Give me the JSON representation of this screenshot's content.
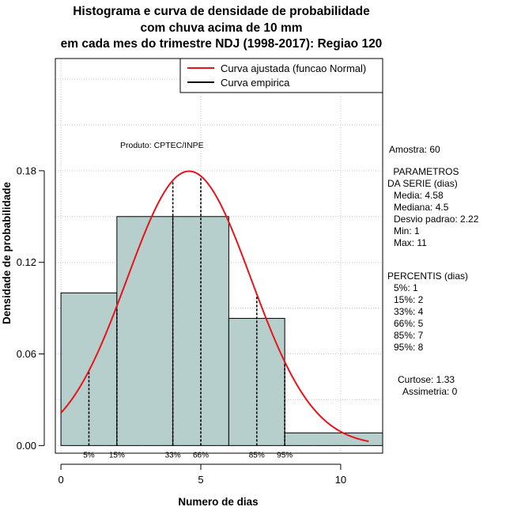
{
  "chart_data": {
    "type": "bar",
    "title_lines": [
      "Histograma e curva de densidade de probabilidade",
      "com chuva acima de 10 mm",
      "em cada mes do trimestre NDJ (1998-2017): Regiao 120"
    ],
    "xlabel": "Numero de dias",
    "ylabel": "Densidade de probabilidade",
    "xlim": [
      -0.2,
      11.5
    ],
    "ylim": [
      -0.005,
      0.2535
    ],
    "x_ticks": [
      0,
      5,
      10
    ],
    "y_ticks": [
      0.0,
      0.06,
      0.12,
      0.18
    ],
    "y_tick_labels": [
      "0.00",
      "0.06",
      "0.12",
      "0.18"
    ],
    "grid": true,
    "histogram": {
      "bin_edges": [
        0,
        2,
        4,
        6,
        8,
        11.5
      ],
      "density": [
        0.1,
        0.15,
        0.15,
        0.0833,
        0.0083
      ],
      "color": "#b6cecc"
    },
    "normal_curve": {
      "mean": 4.58,
      "sd": 2.22,
      "x_range": [
        0,
        11
      ],
      "color": "#e8141b"
    },
    "percentile_lines": [
      {
        "label": "5%",
        "x": 1
      },
      {
        "label": "15%",
        "x": 2
      },
      {
        "label": "33%",
        "x": 4
      },
      {
        "label": "66%",
        "x": 5
      },
      {
        "label": "85%",
        "x": 7
      },
      {
        "label": "95%",
        "x": 8
      }
    ],
    "legend": {
      "position": "top-right",
      "entries": [
        {
          "label": "Curva ajustada (funcao Normal)",
          "color": "#e8141b"
        },
        {
          "label": "Curva empirica",
          "color": "#000000"
        }
      ]
    },
    "annotation": "Produto: CPTEC/INPE"
  },
  "stats_panel": {
    "sample": "Amostra: 60",
    "params_heading": [
      " PARAMETROS",
      "DA SERIE (dias)"
    ],
    "params": [
      "Media: 4.58",
      "Mediana: 4.5",
      "Desvio padrao: 2.22",
      "Min: 1",
      "Max: 11"
    ],
    "percentis_heading": "PERCENTIS (dias)",
    "percentis": [
      "5%: 1",
      "15%: 2",
      "33%: 4",
      "66%: 5",
      "85%: 7",
      "95%: 8"
    ],
    "curtose": "Curtose: 1.33",
    "assimetria": "Assimetria: 0"
  }
}
